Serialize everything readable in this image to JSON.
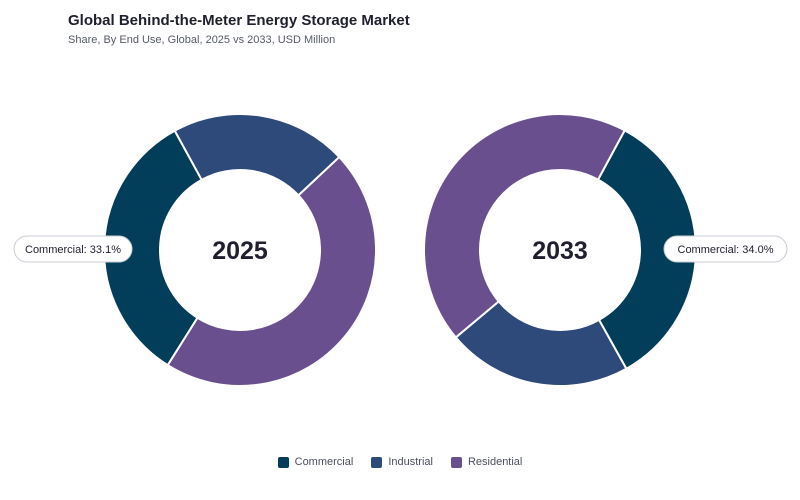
{
  "title": "Global Behind-the-Meter Energy Storage Market",
  "subtitle": "Share, By End Use, Global, 2025 vs 2033, USD Million",
  "colors": {
    "Commercial": "#023e5a",
    "Industrial": "#2e4a7a",
    "Residential": "#6a4f8f"
  },
  "legend": [
    "Commercial",
    "Industrial",
    "Residential"
  ],
  "chart_data": [
    {
      "type": "pie",
      "center_label": "2025",
      "categories": [
        "Commercial",
        "Industrial",
        "Residential"
      ],
      "values": [
        33.1,
        21.0,
        45.9
      ],
      "callout": "Commercial: 33.1%"
    },
    {
      "type": "pie",
      "center_label": "2033",
      "categories": [
        "Commercial",
        "Industrial",
        "Residential"
      ],
      "values": [
        34.0,
        22.0,
        44.0
      ],
      "callout": "Commercial: 34.0%"
    }
  ]
}
